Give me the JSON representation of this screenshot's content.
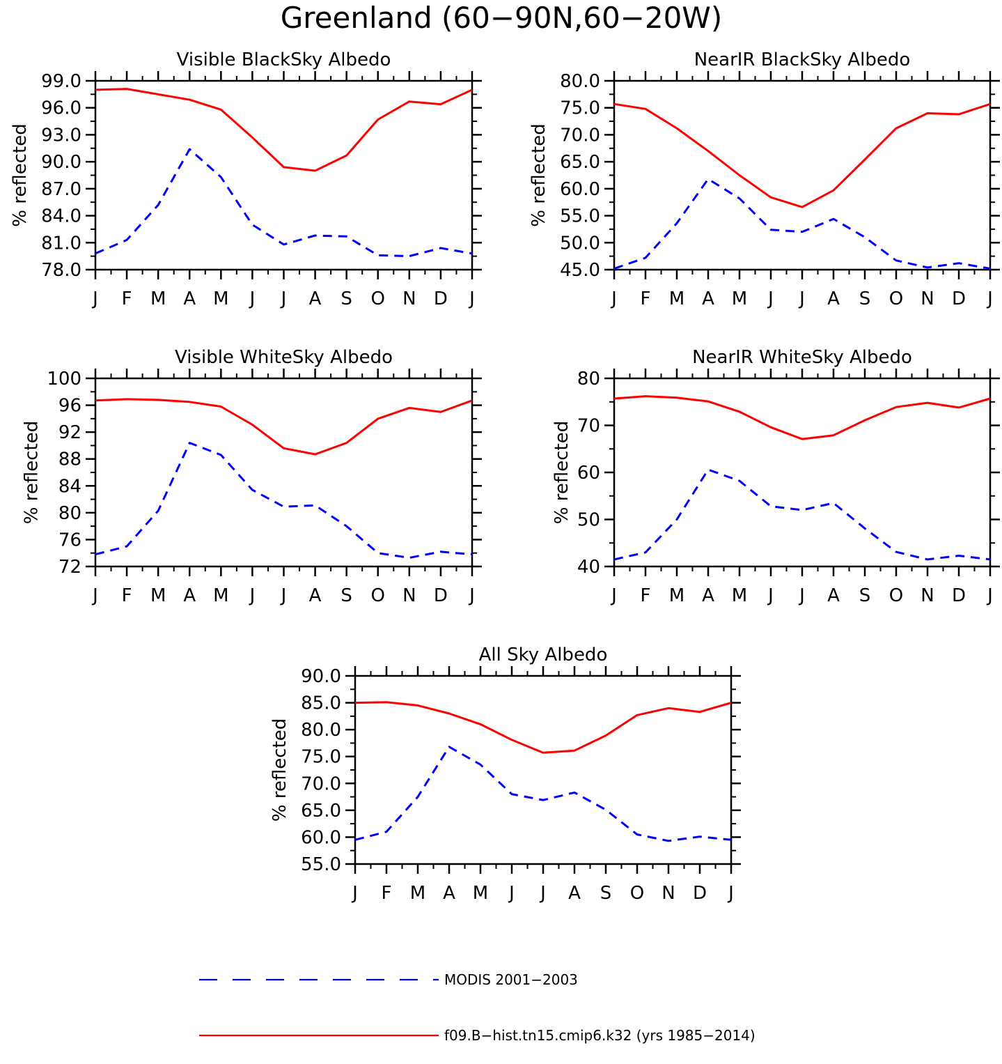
{
  "figure": {
    "title": "Greenland (60−90N,60−20W)",
    "legend": [
      {
        "label": "MODIS 2001−2003",
        "color": "#0000ff",
        "style": "dashed"
      },
      {
        "label": "f09.B−hist.tn15.cmip6.k32 (yrs 1985−2014)",
        "color": "#ff0000",
        "style": "solid"
      }
    ]
  },
  "chart_data": [
    {
      "type": "line",
      "title": "Visible BlackSky Albedo",
      "ylabel": "% reflected",
      "categories": [
        "J",
        "F",
        "M",
        "A",
        "M",
        "J",
        "J",
        "A",
        "S",
        "O",
        "N",
        "D",
        "J"
      ],
      "ylim": [
        78,
        99
      ],
      "yticks": [
        "78.0",
        "81.0",
        "84.0",
        "87.0",
        "90.0",
        "93.0",
        "96.0",
        "99.0"
      ],
      "series": [
        {
          "name": "f09.B−hist.tn15.cmip6.k32 (yrs 1985−2014)",
          "color": "#ff0000",
          "dash": false,
          "values": [
            98.0,
            98.1,
            97.5,
            96.9,
            95.8,
            92.7,
            89.4,
            89.0,
            90.7,
            94.7,
            96.7,
            96.4,
            98.0
          ]
        },
        {
          "name": "MODIS 2001−2003",
          "color": "#0000ff",
          "dash": true,
          "values": [
            79.8,
            81.3,
            85.2,
            91.4,
            88.3,
            83.0,
            80.8,
            81.8,
            81.7,
            79.6,
            79.5,
            80.4,
            79.8
          ]
        }
      ]
    },
    {
      "type": "line",
      "title": "NearIR BlackSky Albedo",
      "ylabel": "% reflected",
      "categories": [
        "J",
        "F",
        "M",
        "A",
        "M",
        "J",
        "J",
        "A",
        "S",
        "O",
        "N",
        "D",
        "J"
      ],
      "ylim": [
        45,
        80
      ],
      "yticks": [
        "45.0",
        "50.0",
        "55.0",
        "60.0",
        "65.0",
        "70.0",
        "75.0",
        "80.0"
      ],
      "series": [
        {
          "name": "f09.B−hist.tn15.cmip6.k32 (yrs 1985−2014)",
          "color": "#ff0000",
          "dash": false,
          "values": [
            75.7,
            74.8,
            71.2,
            67.0,
            62.5,
            58.4,
            56.6,
            59.7,
            65.4,
            71.2,
            74.0,
            73.8,
            75.7
          ]
        },
        {
          "name": "MODIS 2001−2003",
          "color": "#0000ff",
          "dash": true,
          "values": [
            45.2,
            47.2,
            53.6,
            61.8,
            58.2,
            52.4,
            52.0,
            54.4,
            51.0,
            46.7,
            45.4,
            46.2,
            45.2
          ]
        }
      ]
    },
    {
      "type": "line",
      "title": "Visible WhiteSky Albedo",
      "ylabel": "% reflected",
      "categories": [
        "J",
        "F",
        "M",
        "A",
        "M",
        "J",
        "J",
        "A",
        "S",
        "O",
        "N",
        "D",
        "J"
      ],
      "ylim": [
        72,
        100
      ],
      "yticks": [
        "72",
        "76",
        "80",
        "84",
        "88",
        "92",
        "96",
        "100"
      ],
      "series": [
        {
          "name": "f09.B−hist.tn15.cmip6.k32 (yrs 1985−2014)",
          "color": "#ff0000",
          "dash": false,
          "values": [
            96.7,
            96.9,
            96.8,
            96.5,
            95.8,
            93.1,
            89.6,
            88.7,
            90.4,
            94.0,
            95.6,
            95.0,
            96.7
          ]
        },
        {
          "name": "MODIS 2001−2003",
          "color": "#0000ff",
          "dash": true,
          "values": [
            73.8,
            75.0,
            80.3,
            90.4,
            88.6,
            83.4,
            80.9,
            81.1,
            78.0,
            74.0,
            73.3,
            74.2,
            73.8
          ]
        }
      ]
    },
    {
      "type": "line",
      "title": "NearIR WhiteSky Albedo",
      "ylabel": "% reflected",
      "categories": [
        "J",
        "F",
        "M",
        "A",
        "M",
        "J",
        "J",
        "A",
        "S",
        "O",
        "N",
        "D",
        "J"
      ],
      "ylim": [
        40,
        80
      ],
      "yticks": [
        "40",
        "50",
        "60",
        "70",
        "80"
      ],
      "series": [
        {
          "name": "f09.B−hist.tn15.cmip6.k32 (yrs 1985−2014)",
          "color": "#ff0000",
          "dash": false,
          "values": [
            75.7,
            76.2,
            75.9,
            75.1,
            72.9,
            69.6,
            67.1,
            67.9,
            71.1,
            73.9,
            74.8,
            73.8,
            75.7
          ]
        },
        {
          "name": "MODIS 2001−2003",
          "color": "#0000ff",
          "dash": true,
          "values": [
            41.5,
            43.0,
            50.0,
            60.6,
            58.2,
            52.8,
            52.0,
            53.5,
            48.1,
            43.1,
            41.5,
            42.3,
            41.5
          ]
        }
      ]
    },
    {
      "type": "line",
      "title": "All Sky Albedo",
      "ylabel": "% reflected",
      "categories": [
        "J",
        "F",
        "M",
        "A",
        "M",
        "J",
        "J",
        "A",
        "S",
        "O",
        "N",
        "D",
        "J"
      ],
      "ylim": [
        55,
        90
      ],
      "yticks": [
        "55.0",
        "60.0",
        "65.0",
        "70.0",
        "75.0",
        "80.0",
        "85.0",
        "90.0"
      ],
      "series": [
        {
          "name": "f09.B−hist.tn15.cmip6.k32 (yrs 1985−2014)",
          "color": "#ff0000",
          "dash": false,
          "values": [
            85.0,
            85.1,
            84.5,
            83.0,
            81.0,
            78.1,
            75.7,
            76.1,
            78.9,
            82.7,
            84.0,
            83.3,
            85.0
          ]
        },
        {
          "name": "MODIS 2001−2003",
          "color": "#0000ff",
          "dash": true,
          "values": [
            59.5,
            61.0,
            67.5,
            76.8,
            73.5,
            68.0,
            66.9,
            68.3,
            65.1,
            60.5,
            59.3,
            60.1,
            59.5
          ]
        }
      ]
    }
  ]
}
